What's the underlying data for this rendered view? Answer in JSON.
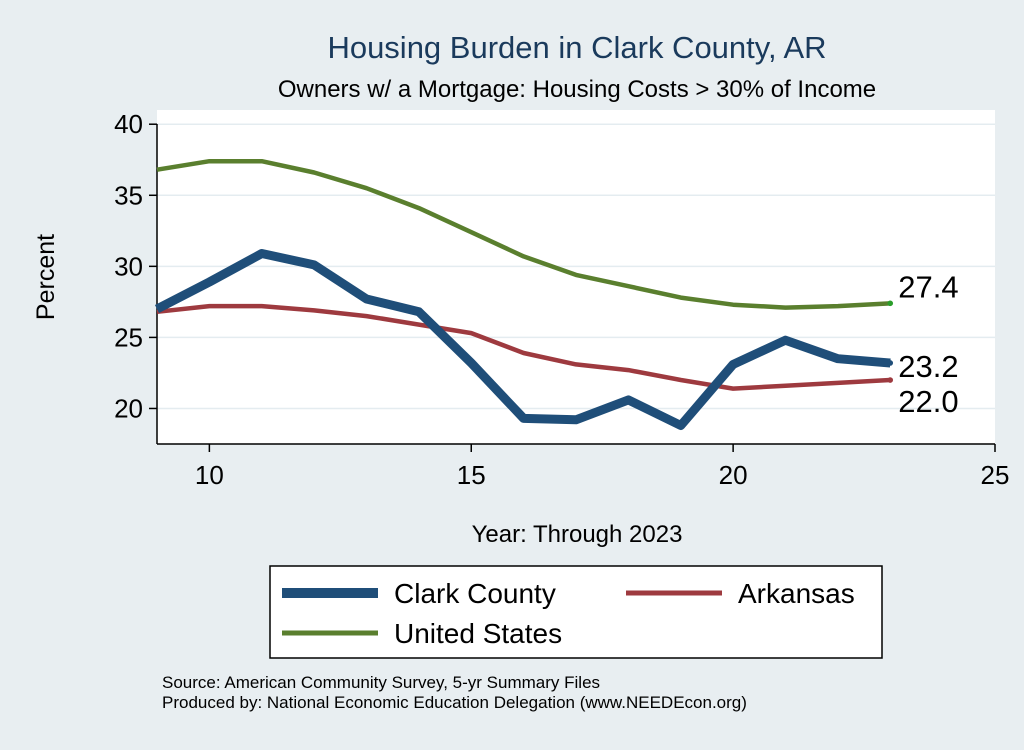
{
  "colors": {
    "background": "#e8eef1",
    "plot_background": "#ffffff",
    "title": "#1a3a5c",
    "grid": "#e4ecf0",
    "axis": "#000000",
    "legend_box": "#ffffff"
  },
  "chart_data": {
    "type": "line",
    "title": "Housing Burden in Clark County, AR",
    "subtitle": "Owners w/ a Mortgage: Housing Costs > 30% of Income",
    "xlabel": "Year: Through 2023",
    "ylabel": "Percent",
    "xlim": [
      9,
      25
    ],
    "ylim": [
      17.5,
      41
    ],
    "xticks": [
      10,
      15,
      20,
      25
    ],
    "yticks": [
      20,
      25,
      30,
      35,
      40
    ],
    "grid": true,
    "legend_position": "bottom",
    "series": [
      {
        "name": "Clark County",
        "color": "#1f4e79",
        "x": [
          9,
          10,
          11,
          12,
          13,
          14,
          15,
          16,
          17,
          18,
          19,
          20,
          21,
          22,
          23
        ],
        "values": [
          27.0,
          28.9,
          30.9,
          30.1,
          27.7,
          26.8,
          23.2,
          19.3,
          19.2,
          20.6,
          18.8,
          23.1,
          24.8,
          23.5,
          23.2
        ],
        "end_label": "23.2"
      },
      {
        "name": "Arkansas",
        "color": "#9e3a3f",
        "x": [
          9,
          10,
          11,
          12,
          13,
          14,
          15,
          16,
          17,
          18,
          19,
          20,
          21,
          22,
          23
        ],
        "values": [
          26.8,
          27.2,
          27.2,
          26.9,
          26.5,
          25.9,
          25.3,
          23.9,
          23.1,
          22.7,
          22.0,
          21.4,
          21.6,
          21.8,
          22.0
        ],
        "end_label": "22.0"
      },
      {
        "name": "United States",
        "color": "#5a7f2e",
        "x": [
          9,
          10,
          11,
          12,
          13,
          14,
          15,
          16,
          17,
          18,
          19,
          20,
          21,
          22,
          23
        ],
        "values": [
          36.8,
          37.4,
          37.4,
          36.6,
          35.5,
          34.1,
          32.4,
          30.7,
          29.4,
          28.6,
          27.8,
          27.3,
          27.1,
          27.2,
          27.4
        ],
        "end_label": "27.4"
      }
    ],
    "notes": [
      "Source: American Community Survey, 5-yr Summary Files",
      "Produced by: National Economic Education Delegation (www.NEEDEcon.org)"
    ]
  }
}
